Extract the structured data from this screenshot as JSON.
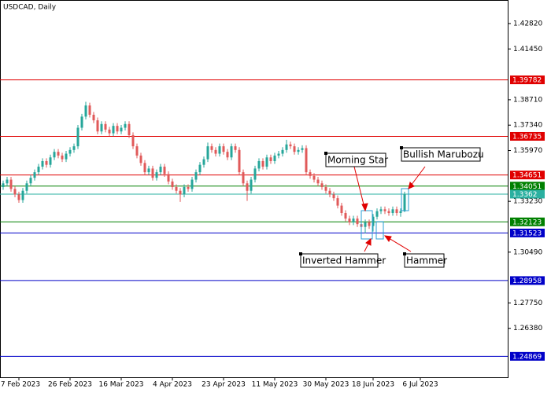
{
  "chart_data": {
    "type": "candlestick",
    "title": "USDCAD, Daily",
    "ylim": [
      1.2374,
      1.4409
    ],
    "xlim": [
      -0.8,
      128.2
    ],
    "yticks": [
      {
        "value": 1.4282,
        "label": "1.42820"
      },
      {
        "value": 1.4145,
        "label": "1.41450"
      },
      {
        "value": 1.3871,
        "label": "1.38710"
      },
      {
        "value": 1.3734,
        "label": "1.37340"
      },
      {
        "value": 1.3597,
        "label": "1.35970"
      },
      {
        "value": 1.3323,
        "label": "1.33230"
      },
      {
        "value": 1.3049,
        "label": "1.30490"
      },
      {
        "value": 1.2775,
        "label": "1.27750"
      },
      {
        "value": 1.2638,
        "label": "1.26380"
      }
    ],
    "xticks": [
      {
        "value": 4,
        "label": "7 Feb 2023"
      },
      {
        "value": 17,
        "label": "26 Feb 2023"
      },
      {
        "value": 30,
        "label": "16 Mar 2023"
      },
      {
        "value": 43,
        "label": "4 Apr 2023"
      },
      {
        "value": 56,
        "label": "23 Apr 2023"
      },
      {
        "value": 69,
        "label": "11 May 2023"
      },
      {
        "value": 82,
        "label": "30 May 2023"
      },
      {
        "value": 94,
        "label": "18 Jun 2023"
      },
      {
        "value": 106,
        "label": "6 Jul 2023"
      }
    ],
    "up_color": "#26a69a",
    "down_color": "#e05a5a",
    "levels": [
      {
        "value": 1.39782,
        "color": "#e00000"
      },
      {
        "value": 1.36735,
        "color": "#e00000"
      },
      {
        "value": 1.34651,
        "color": "#e00000"
      },
      {
        "value": 1.34051,
        "color": "#008000"
      },
      {
        "value": 1.3362,
        "color": "#2ab0a0"
      },
      {
        "value": 1.32123,
        "color": "#008000"
      },
      {
        "value": 1.31523,
        "color": "#0000c8"
      },
      {
        "value": 1.28958,
        "color": "#0000c8"
      },
      {
        "value": 1.24869,
        "color": "#0000c8"
      }
    ],
    "annotations": [
      "Morning Star",
      "Bullish Marubozu",
      "Inverted Hammer",
      "Hammer"
    ],
    "ohlc": [
      [
        1.34,
        1.3435,
        1.3385,
        1.342
      ],
      [
        1.342,
        1.3455,
        1.3405,
        1.344
      ],
      [
        1.344,
        1.3455,
        1.3375,
        1.339
      ],
      [
        1.339,
        1.3405,
        1.3345,
        1.336
      ],
      [
        1.336,
        1.3375,
        1.3315,
        1.333
      ],
      [
        1.333,
        1.3395,
        1.3315,
        1.338
      ],
      [
        1.338,
        1.3435,
        1.3365,
        1.342
      ],
      [
        1.342,
        1.3465,
        1.3405,
        1.345
      ],
      [
        1.345,
        1.3495,
        1.3435,
        1.348
      ],
      [
        1.348,
        1.3525,
        1.3465,
        1.351
      ],
      [
        1.351,
        1.3555,
        1.3495,
        1.354
      ],
      [
        1.354,
        1.3555,
        1.3505,
        1.352
      ],
      [
        1.352,
        1.3575,
        1.3505,
        1.356
      ],
      [
        1.356,
        1.3605,
        1.3545,
        1.359
      ],
      [
        1.359,
        1.3605,
        1.3555,
        1.357
      ],
      [
        1.357,
        1.3585,
        1.3535,
        1.355
      ],
      [
        1.355,
        1.3595,
        1.3535,
        1.358
      ],
      [
        1.358,
        1.3615,
        1.3565,
        1.36
      ],
      [
        1.36,
        1.3635,
        1.3585,
        1.362
      ],
      [
        1.362,
        1.3735,
        1.3605,
        1.372
      ],
      [
        1.372,
        1.3795,
        1.3705,
        1.378
      ],
      [
        1.378,
        1.386,
        1.3765,
        1.384
      ],
      [
        1.384,
        1.3855,
        1.3775,
        1.379
      ],
      [
        1.379,
        1.3805,
        1.3745,
        1.376
      ],
      [
        1.376,
        1.3775,
        1.3685,
        1.37
      ],
      [
        1.37,
        1.3755,
        1.3685,
        1.374
      ],
      [
        1.374,
        1.3755,
        1.3695,
        1.371
      ],
      [
        1.371,
        1.3725,
        1.3675,
        1.369
      ],
      [
        1.369,
        1.3745,
        1.3675,
        1.373
      ],
      [
        1.373,
        1.3745,
        1.3685,
        1.37
      ],
      [
        1.37,
        1.3735,
        1.3685,
        1.372
      ],
      [
        1.372,
        1.3755,
        1.3705,
        1.374
      ],
      [
        1.374,
        1.3755,
        1.3665,
        1.368
      ],
      [
        1.368,
        1.3695,
        1.3605,
        1.362
      ],
      [
        1.362,
        1.3635,
        1.3555,
        1.357
      ],
      [
        1.357,
        1.3585,
        1.3515,
        1.353
      ],
      [
        1.353,
        1.3545,
        1.3465,
        1.348
      ],
      [
        1.348,
        1.3515,
        1.3465,
        1.35
      ],
      [
        1.35,
        1.3515,
        1.3435,
        1.345
      ],
      [
        1.345,
        1.3495,
        1.3435,
        1.348
      ],
      [
        1.348,
        1.3525,
        1.3465,
        1.351
      ],
      [
        1.351,
        1.3525,
        1.3455,
        1.347
      ],
      [
        1.347,
        1.3485,
        1.3415,
        1.343
      ],
      [
        1.343,
        1.3445,
        1.3385,
        1.34
      ],
      [
        1.34,
        1.3415,
        1.3365,
        1.338
      ],
      [
        1.338,
        1.3395,
        1.332,
        1.336
      ],
      [
        1.336,
        1.3415,
        1.3345,
        1.34
      ],
      [
        1.34,
        1.3415,
        1.3375,
        1.339
      ],
      [
        1.339,
        1.3455,
        1.3375,
        1.344
      ],
      [
        1.344,
        1.3495,
        1.3425,
        1.348
      ],
      [
        1.348,
        1.3535,
        1.3465,
        1.352
      ],
      [
        1.352,
        1.3565,
        1.3505,
        1.355
      ],
      [
        1.355,
        1.364,
        1.3535,
        1.362
      ],
      [
        1.362,
        1.3635,
        1.3585,
        1.36
      ],
      [
        1.36,
        1.3615,
        1.3565,
        1.358
      ],
      [
        1.358,
        1.3635,
        1.3565,
        1.362
      ],
      [
        1.362,
        1.3635,
        1.3575,
        1.359
      ],
      [
        1.359,
        1.3605,
        1.3545,
        1.356
      ],
      [
        1.356,
        1.3635,
        1.3545,
        1.362
      ],
      [
        1.362,
        1.3635,
        1.3585,
        1.36
      ],
      [
        1.36,
        1.3615,
        1.3465,
        1.348
      ],
      [
        1.348,
        1.3495,
        1.3405,
        1.342
      ],
      [
        1.342,
        1.3435,
        1.3325,
        1.338
      ],
      [
        1.338,
        1.3455,
        1.3365,
        1.344
      ],
      [
        1.344,
        1.3515,
        1.3425,
        1.35
      ],
      [
        1.35,
        1.3555,
        1.3485,
        1.354
      ],
      [
        1.354,
        1.3555,
        1.3495,
        1.351
      ],
      [
        1.351,
        1.3575,
        1.3495,
        1.356
      ],
      [
        1.356,
        1.3575,
        1.3525,
        1.354
      ],
      [
        1.354,
        1.3585,
        1.3525,
        1.357
      ],
      [
        1.357,
        1.3595,
        1.3555,
        1.358
      ],
      [
        1.358,
        1.3615,
        1.3565,
        1.36
      ],
      [
        1.36,
        1.3655,
        1.3585,
        1.363
      ],
      [
        1.363,
        1.3645,
        1.3605,
        1.362
      ],
      [
        1.362,
        1.3635,
        1.3575,
        1.359
      ],
      [
        1.359,
        1.3615,
        1.3575,
        1.36
      ],
      [
        1.36,
        1.3625,
        1.3585,
        1.361
      ],
      [
        1.361,
        1.3625,
        1.3465,
        1.348
      ],
      [
        1.348,
        1.3495,
        1.3445,
        1.346
      ],
      [
        1.346,
        1.3475,
        1.3425,
        1.344
      ],
      [
        1.344,
        1.3455,
        1.3405,
        1.342
      ],
      [
        1.342,
        1.3435,
        1.3385,
        1.34
      ],
      [
        1.34,
        1.3415,
        1.3365,
        1.338
      ],
      [
        1.338,
        1.3395,
        1.3345,
        1.336
      ],
      [
        1.336,
        1.3375,
        1.3325,
        1.334
      ],
      [
        1.334,
        1.3355,
        1.3285,
        1.33
      ],
      [
        1.33,
        1.3315,
        1.3245,
        1.326
      ],
      [
        1.326,
        1.3275,
        1.3215,
        1.323
      ],
      [
        1.323,
        1.3245,
        1.3195,
        1.321
      ],
      [
        1.321,
        1.3245,
        1.3195,
        1.323
      ],
      [
        1.323,
        1.3245,
        1.3185,
        1.32
      ],
      [
        1.32,
        1.3215,
        1.316,
        1.3185
      ],
      [
        1.3185,
        1.3225,
        1.315,
        1.321
      ],
      [
        1.321,
        1.3225,
        1.3175,
        1.319
      ],
      [
        1.319,
        1.3255,
        1.316,
        1.324
      ],
      [
        1.324,
        1.3285,
        1.3225,
        1.327
      ],
      [
        1.327,
        1.3295,
        1.3255,
        1.328
      ],
      [
        1.328,
        1.3295,
        1.3255,
        1.327
      ],
      [
        1.327,
        1.3285,
        1.3245,
        1.326
      ],
      [
        1.326,
        1.3295,
        1.3245,
        1.328
      ],
      [
        1.328,
        1.3295,
        1.3245,
        1.326
      ],
      [
        1.326,
        1.3285,
        1.324,
        1.327
      ],
      [
        1.327,
        1.3375,
        1.3265,
        1.3362
      ]
    ]
  }
}
